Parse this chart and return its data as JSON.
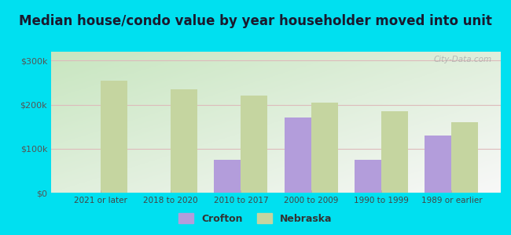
{
  "title": "Median house/condo value by year householder moved into unit",
  "categories": [
    "2021 or later",
    "2018 to 2020",
    "2010 to 2017",
    "2000 to 2009",
    "1990 to 1999",
    "1989 or earlier"
  ],
  "crofton_values": [
    null,
    null,
    75000,
    170000,
    75000,
    130000
  ],
  "nebraska_values": [
    255000,
    235000,
    220000,
    205000,
    185000,
    160000
  ],
  "crofton_color": "#b39ddb",
  "nebraska_color": "#c5d5a0",
  "background_outer": "#00e0f0",
  "background_inner_topleft": "#c8e6c0",
  "background_inner_bottomright": "#f8f8f8",
  "ylim": [
    0,
    320000
  ],
  "yticks": [
    0,
    100000,
    200000,
    300000
  ],
  "ytick_labels": [
    "$0",
    "$100k",
    "$200k",
    "$300k"
  ],
  "legend_crofton": "Crofton",
  "legend_nebraska": "Nebraska",
  "title_fontsize": 12,
  "watermark": "City-Data.com",
  "bar_width": 0.38
}
